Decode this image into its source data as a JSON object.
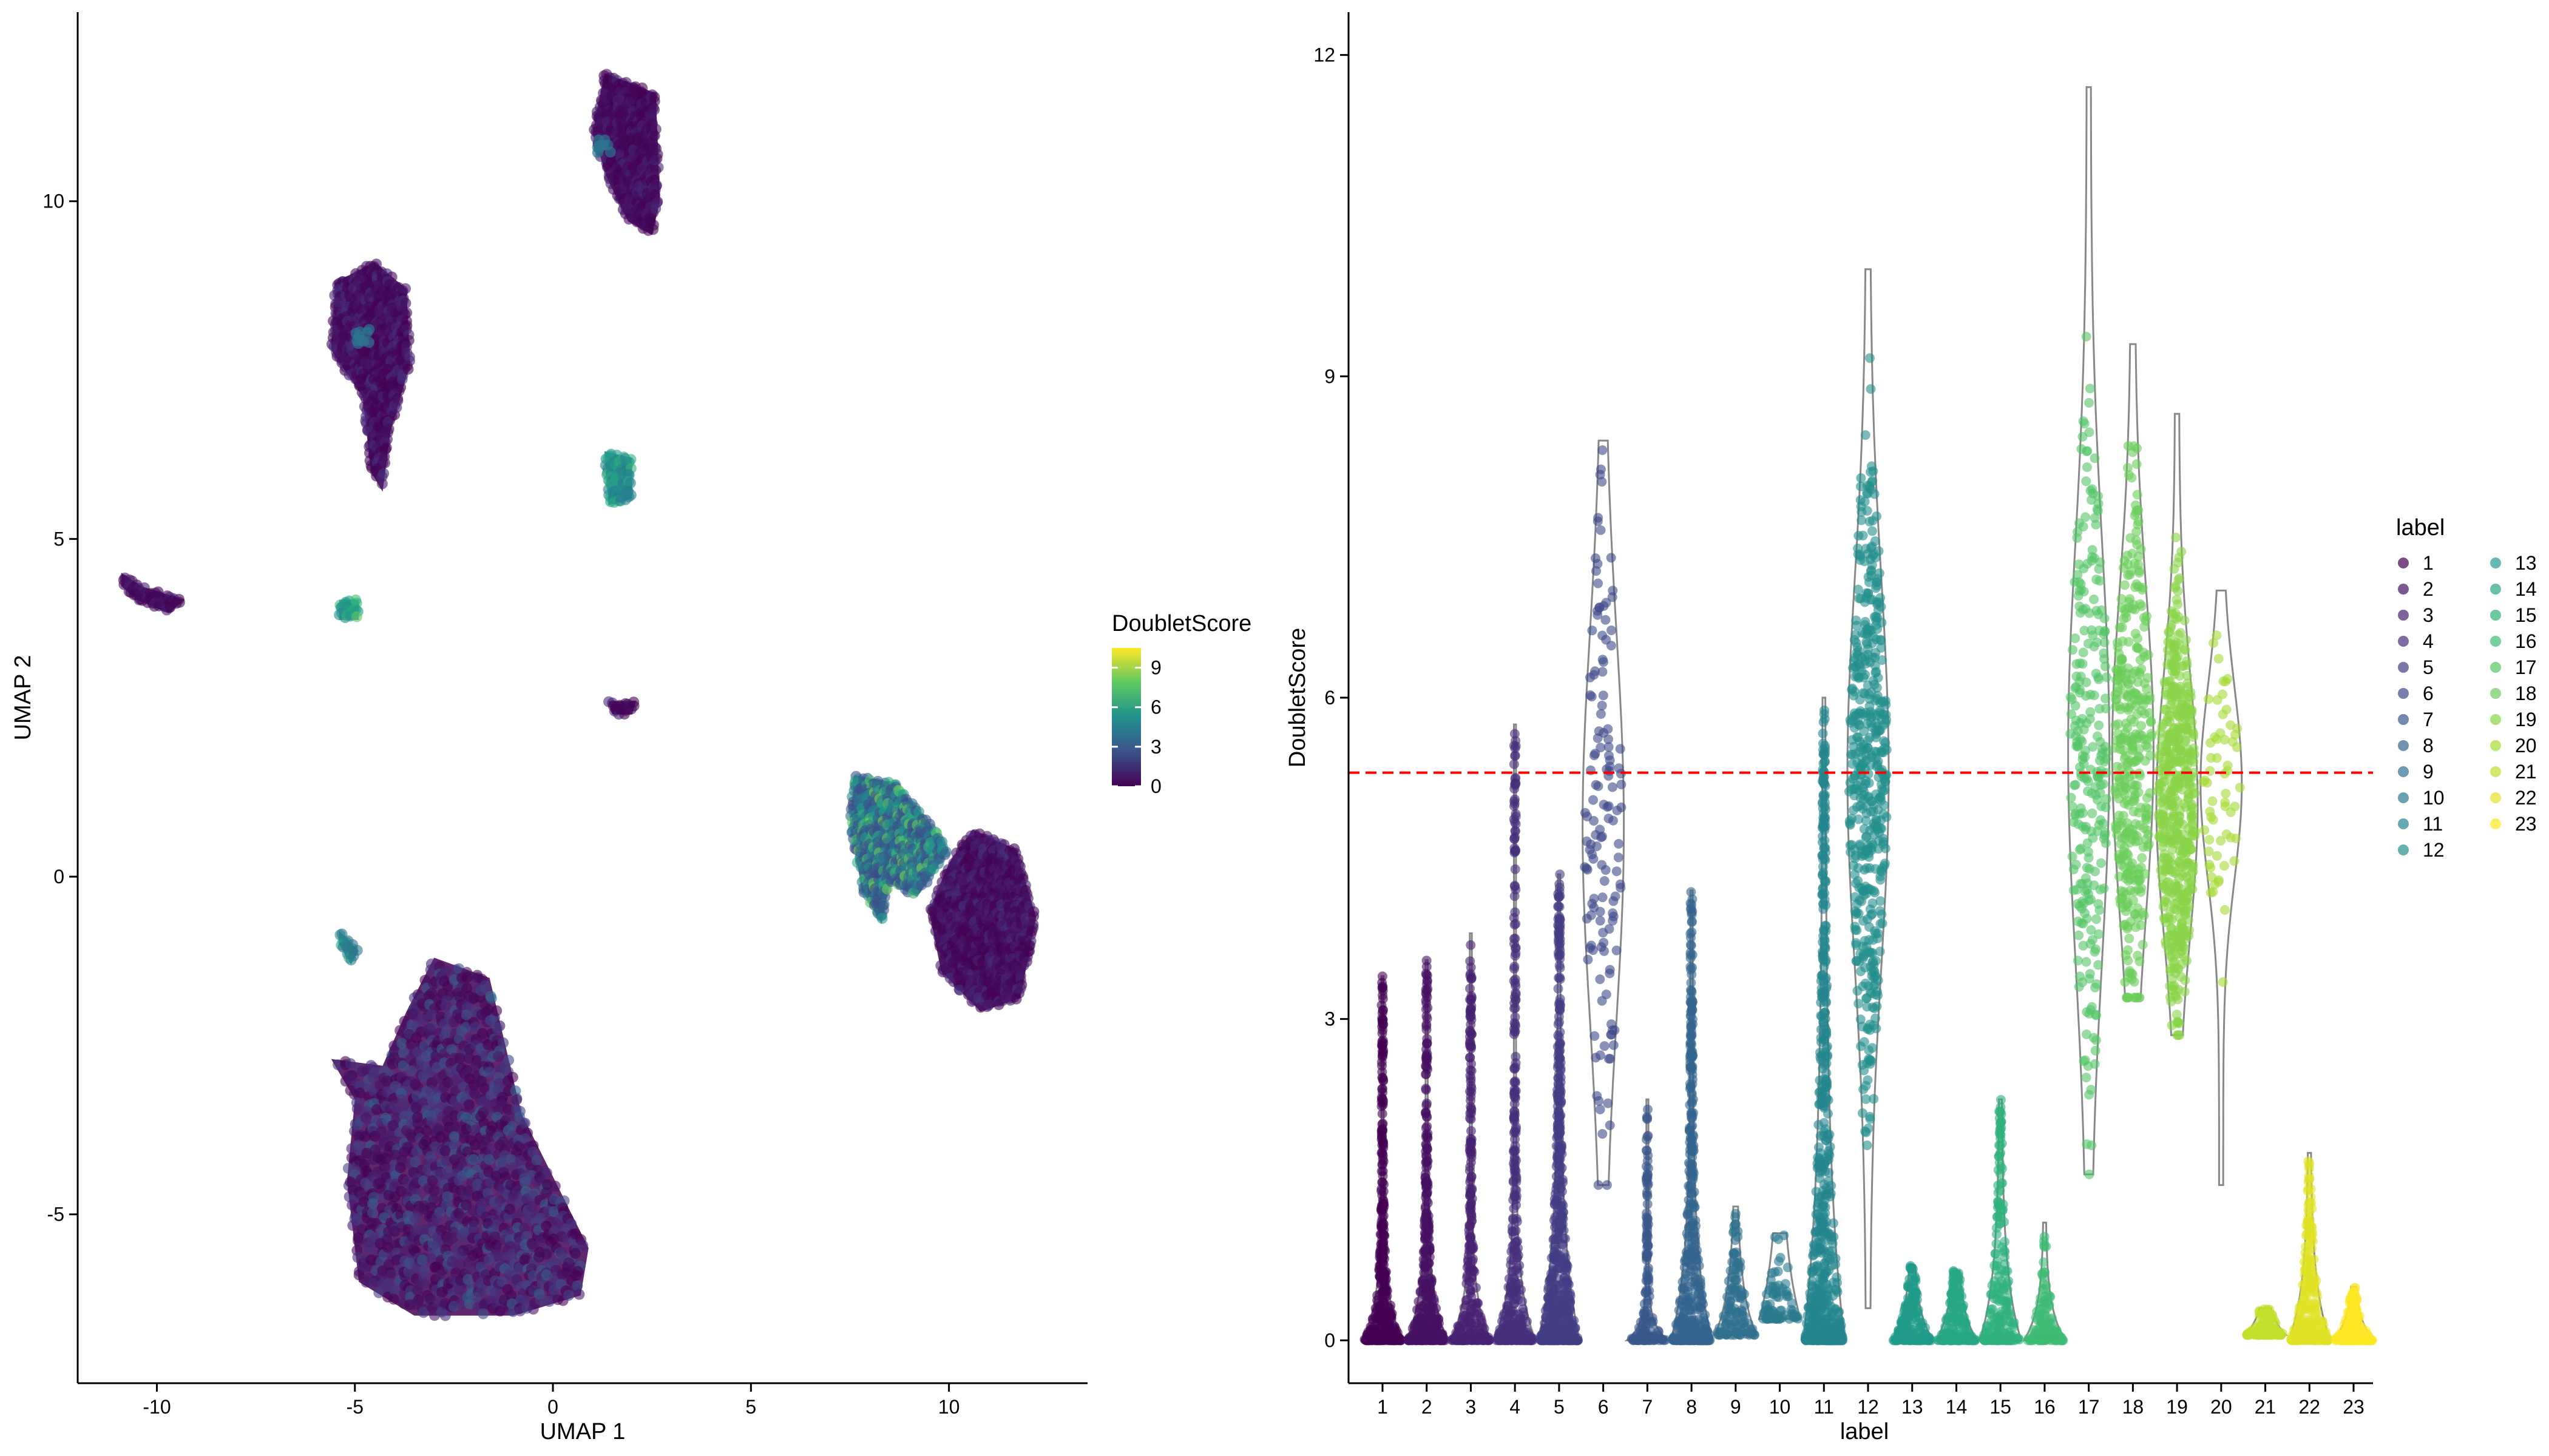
{
  "chart_data": [
    {
      "type": "scatter",
      "xlabel": "UMAP 1",
      "ylabel": "UMAP 2",
      "xlim": [
        -12,
        13.5
      ],
      "ylim": [
        -7.5,
        12.8
      ],
      "xticks": [
        -10,
        -5,
        0,
        5,
        10
      ],
      "yticks": [
        -5,
        0,
        5,
        10
      ],
      "color_by": "DoubletScore",
      "colorbar": {
        "title": "DoubletScore",
        "ticks": [
          0,
          3,
          6,
          9
        ],
        "min": 0,
        "max": 10.5
      },
      "clusters": [
        {
          "shape": [
            [
              1.3,
              11.9
            ],
            [
              2.6,
              11.6
            ],
            [
              2.7,
              10.0
            ],
            [
              2.5,
              9.5
            ],
            [
              1.9,
              9.7
            ],
            [
              1.4,
              10.3
            ],
            [
              1.0,
              11.0
            ]
          ],
          "score_range": [
            0,
            1.2
          ],
          "hot_spots": [
            {
              "x": 1.3,
              "y": 10.8,
              "score": 4
            }
          ]
        },
        {
          "shape": [
            [
              -5.5,
              8.8
            ],
            [
              -4.5,
              9.1
            ],
            [
              -3.7,
              8.7
            ],
            [
              -3.6,
              7.6
            ],
            [
              -4.1,
              6.6
            ],
            [
              -4.3,
              5.7
            ],
            [
              -4.6,
              6.0
            ],
            [
              -4.8,
              7.1
            ],
            [
              -5.6,
              7.8
            ]
          ],
          "score_range": [
            0,
            1.5
          ],
          "hot_spots": [
            {
              "x": -4.8,
              "y": 8.0,
              "score": 4
            }
          ]
        },
        {
          "shape": [
            [
              -10.9,
              4.5
            ],
            [
              -10.4,
              4.3
            ],
            [
              -9.3,
              4.1
            ],
            [
              -9.7,
              3.9
            ],
            [
              -10.5,
              4.1
            ],
            [
              -10.9,
              4.3
            ]
          ],
          "score_range": [
            0,
            1
          ]
        },
        {
          "shape": [
            [
              -5.4,
              4.1
            ],
            [
              -4.9,
              4.1
            ],
            [
              -4.9,
              3.8
            ],
            [
              -5.4,
              3.8
            ]
          ],
          "score_range": [
            5,
            8
          ]
        },
        {
          "shape": [
            [
              1.3,
              6.3
            ],
            [
              2.0,
              6.2
            ],
            [
              2.0,
              5.6
            ],
            [
              1.4,
              5.5
            ]
          ],
          "score_range": [
            4.5,
            7
          ]
        },
        {
          "shape": [
            [
              1.4,
              2.6
            ],
            [
              2.1,
              2.6
            ],
            [
              2.0,
              2.4
            ],
            [
              1.5,
              2.4
            ]
          ],
          "score_range": [
            0,
            1.5
          ]
        },
        {
          "shape": [
            [
              7.6,
              1.5
            ],
            [
              8.6,
              1.4
            ],
            [
              9.5,
              0.8
            ],
            [
              10.0,
              0.4
            ],
            [
              9.2,
              -0.3
            ],
            [
              8.5,
              -0.1
            ],
            [
              8.3,
              -0.7
            ],
            [
              7.8,
              -0.2
            ],
            [
              7.5,
              0.8
            ]
          ],
          "score_range": [
            2.5,
            8.5
          ]
        },
        {
          "shape": [
            [
              10.6,
              0.7
            ],
            [
              11.7,
              0.4
            ],
            [
              12.2,
              -0.6
            ],
            [
              11.8,
              -1.8
            ],
            [
              10.8,
              -2.0
            ],
            [
              9.8,
              -1.4
            ],
            [
              9.5,
              -0.5
            ],
            [
              10.0,
              0.2
            ]
          ],
          "score_range": [
            0,
            1.5
          ]
        },
        {
          "shape": [
            [
              -5.4,
              -0.8
            ],
            [
              -4.9,
              -1.1
            ],
            [
              -5.1,
              -1.3
            ],
            [
              -5.4,
              -1.0
            ]
          ],
          "score_range": [
            4,
            7
          ]
        },
        {
          "shape": [
            [
              -3.0,
              -1.2
            ],
            [
              -1.6,
              -1.5
            ],
            [
              -0.8,
              -3.5
            ],
            [
              0.9,
              -5.5
            ],
            [
              0.7,
              -6.2
            ],
            [
              -1.0,
              -6.5
            ],
            [
              -3.5,
              -6.5
            ],
            [
              -4.9,
              -6.0
            ],
            [
              -5.2,
              -4.5
            ],
            [
              -5.0,
              -3.3
            ],
            [
              -5.6,
              -2.7
            ],
            [
              -4.3,
              -2.8
            ],
            [
              -3.7,
              -2.0
            ]
          ],
          "score_range": [
            0,
            3.5
          ]
        }
      ]
    },
    {
      "type": "violin",
      "xlabel": "label",
      "ylabel": "DoubletScore",
      "ylim": [
        -0.4,
        12.4
      ],
      "yticks": [
        0,
        3,
        6,
        9,
        12
      ],
      "threshold": 5.3,
      "categories": [
        "1",
        "2",
        "3",
        "4",
        "5",
        "6",
        "7",
        "8",
        "9",
        "10",
        "11",
        "12",
        "13",
        "14",
        "15",
        "16",
        "17",
        "18",
        "19",
        "20",
        "21",
        "22",
        "23"
      ],
      "groups": [
        {
          "label": "1",
          "min": 0,
          "max": 3.4,
          "median": 0.1,
          "q3": 0.35,
          "n": 400
        },
        {
          "label": "2",
          "min": 0,
          "max": 3.55,
          "median": 0.1,
          "q3": 0.4,
          "n": 400
        },
        {
          "label": "3",
          "min": 0,
          "max": 3.8,
          "median": 0.1,
          "q3": 0.35,
          "n": 300
        },
        {
          "label": "4",
          "min": 0,
          "max": 5.75,
          "median": 0.15,
          "q3": 0.45,
          "n": 350
        },
        {
          "label": "5",
          "min": 0,
          "max": 4.35,
          "median": 0.2,
          "q3": 0.8,
          "n": 600
        },
        {
          "label": "6",
          "min": 1.45,
          "max": 8.4,
          "median": 4.8,
          "q3": 6.0,
          "n": 140
        },
        {
          "label": "7",
          "min": 0,
          "max": 2.25,
          "median": 0.05,
          "q3": 0.15,
          "n": 150
        },
        {
          "label": "8",
          "min": 0,
          "max": 4.2,
          "median": 0.25,
          "q3": 0.7,
          "n": 450
        },
        {
          "label": "9",
          "min": 0.05,
          "max": 1.25,
          "median": 0.25,
          "q3": 0.45,
          "n": 120
        },
        {
          "label": "10",
          "min": 0.2,
          "max": 1.0,
          "median": 0.5,
          "q3": 0.65,
          "n": 80
        },
        {
          "label": "11",
          "min": 0,
          "max": 6.0,
          "median": 0.4,
          "q3": 1.5,
          "n": 650
        },
        {
          "label": "12",
          "min": 0.3,
          "max": 10.0,
          "median": 5.3,
          "q3": 6.5,
          "n": 500
        },
        {
          "label": "13",
          "min": 0,
          "max": 0.7,
          "median": 0.15,
          "q3": 0.3,
          "n": 180
        },
        {
          "label": "14",
          "min": 0,
          "max": 0.65,
          "median": 0.15,
          "q3": 0.3,
          "n": 180
        },
        {
          "label": "15",
          "min": 0,
          "max": 2.25,
          "median": 0.25,
          "q3": 0.6,
          "n": 220
        },
        {
          "label": "16",
          "min": 0,
          "max": 1.1,
          "median": 0.1,
          "q3": 0.3,
          "n": 120
        },
        {
          "label": "17",
          "min": 1.55,
          "max": 11.7,
          "median": 5.5,
          "q3": 6.8,
          "n": 260
        },
        {
          "label": "18",
          "min": 3.2,
          "max": 9.3,
          "median": 5.5,
          "q3": 6.5,
          "n": 360
        },
        {
          "label": "19",
          "min": 2.85,
          "max": 8.65,
          "median": 5.0,
          "q3": 5.8,
          "n": 550
        },
        {
          "label": "20",
          "min": 1.45,
          "max": 7.0,
          "median": 5.2,
          "q3": 5.8,
          "n": 60
        },
        {
          "label": "21",
          "min": 0.05,
          "max": 0.3,
          "median": 0.12,
          "q3": 0.18,
          "n": 120
        },
        {
          "label": "22",
          "min": 0,
          "max": 1.75,
          "median": 0.2,
          "q3": 0.5,
          "n": 260
        },
        {
          "label": "23",
          "min": 0,
          "max": 0.5,
          "median": 0.1,
          "q3": 0.2,
          "n": 200
        }
      ],
      "legend": {
        "title": "label",
        "position": "right",
        "columns": [
          [
            "1",
            "2",
            "3",
            "4",
            "5",
            "6",
            "7",
            "8",
            "9",
            "10",
            "11",
            "12"
          ],
          [
            "13",
            "14",
            "15",
            "16",
            "17",
            "18",
            "19",
            "20",
            "21",
            "22",
            "23"
          ]
        ]
      }
    }
  ]
}
